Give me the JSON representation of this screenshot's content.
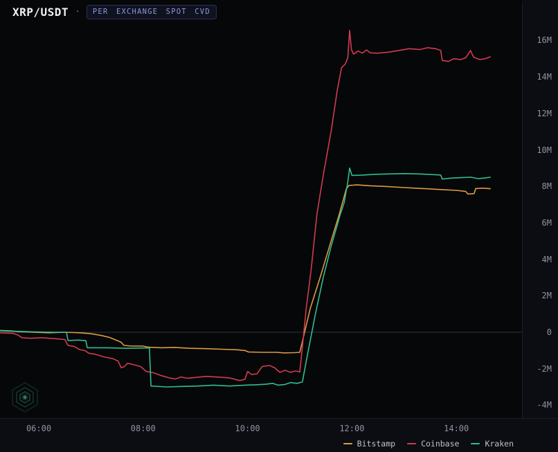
{
  "header": {
    "symbol": "XRP/USDT",
    "separator": "·",
    "badge": "PER EXCHANGE SPOT CVD"
  },
  "colors": {
    "background": "#0b0d13",
    "plot_background": "#060709",
    "zero_line": "#32343b",
    "axis_text": "#8f93a0",
    "badge_text": "#8c96dd",
    "bitstamp": "#dd9c3e",
    "coinbase": "#d23c4e",
    "kraken": "#31bd92"
  },
  "watermark": {
    "name": "hexagon-logo"
  },
  "chart_data": {
    "type": "line",
    "title": "XRP/USDT",
    "subtitle_badge": "PER EXCHANGE SPOT CVD",
    "units": "millions (CVD)",
    "grid": "zero-line only",
    "legend_position": "bottom-right",
    "x_axis": {
      "label_type": "time",
      "range_hours": [
        5.25,
        14.72
      ],
      "ticks": [
        {
          "t": 6,
          "label": "06:00"
        },
        {
          "t": 8,
          "label": "08:00"
        },
        {
          "t": 10,
          "label": "10:00"
        },
        {
          "t": 12,
          "label": "12:00"
        },
        {
          "t": 14,
          "label": "14:00"
        }
      ]
    },
    "y_axis": {
      "range_millions": [
        -4.7,
        16.9
      ],
      "ticks": [
        {
          "v": 16,
          "label": "16M"
        },
        {
          "v": 14,
          "label": "14M"
        },
        {
          "v": 12,
          "label": "12M"
        },
        {
          "v": 10,
          "label": "10M"
        },
        {
          "v": 8,
          "label": "8M"
        },
        {
          "v": 6,
          "label": "6M"
        },
        {
          "v": 4,
          "label": "4M"
        },
        {
          "v": 2,
          "label": "2M"
        },
        {
          "v": 0,
          "label": "0"
        },
        {
          "v": -2,
          "label": "-2M"
        },
        {
          "v": -4,
          "label": "-4M"
        }
      ]
    },
    "series": [
      {
        "name": "Bitstamp",
        "color": "#dd9c3e",
        "points": [
          [
            5.26,
            0.1
          ],
          [
            5.45,
            0.08
          ],
          [
            5.62,
            0.03
          ],
          [
            5.9,
            0.0
          ],
          [
            6.2,
            -0.03
          ],
          [
            6.5,
            0.0
          ],
          [
            6.8,
            -0.03
          ],
          [
            7.0,
            -0.08
          ],
          [
            7.2,
            -0.18
          ],
          [
            7.35,
            -0.28
          ],
          [
            7.5,
            -0.45
          ],
          [
            7.58,
            -0.55
          ],
          [
            7.63,
            -0.72
          ],
          [
            7.75,
            -0.75
          ],
          [
            8.0,
            -0.76
          ],
          [
            8.1,
            -0.82
          ],
          [
            8.35,
            -0.85
          ],
          [
            8.6,
            -0.83
          ],
          [
            8.9,
            -0.88
          ],
          [
            9.2,
            -0.9
          ],
          [
            9.5,
            -0.93
          ],
          [
            9.8,
            -0.96
          ],
          [
            9.95,
            -1.0
          ],
          [
            10.02,
            -1.08
          ],
          [
            10.3,
            -1.1
          ],
          [
            10.55,
            -1.1
          ],
          [
            10.7,
            -1.13
          ],
          [
            10.9,
            -1.12
          ],
          [
            11.0,
            -1.1
          ],
          [
            11.05,
            -0.5
          ],
          [
            11.2,
            1.3
          ],
          [
            11.4,
            3.1
          ],
          [
            11.6,
            5.0
          ],
          [
            11.76,
            6.5
          ],
          [
            11.89,
            7.85
          ],
          [
            11.94,
            8.05
          ],
          [
            12.1,
            8.08
          ],
          [
            12.35,
            8.03
          ],
          [
            12.6,
            8.0
          ],
          [
            12.9,
            7.95
          ],
          [
            13.2,
            7.9
          ],
          [
            13.5,
            7.86
          ],
          [
            13.72,
            7.82
          ],
          [
            14.0,
            7.78
          ],
          [
            14.18,
            7.72
          ],
          [
            14.22,
            7.58
          ],
          [
            14.34,
            7.6
          ],
          [
            14.37,
            7.88
          ],
          [
            14.5,
            7.9
          ],
          [
            14.65,
            7.87
          ]
        ]
      },
      {
        "name": "Coinbase",
        "color": "#d23c4e",
        "points": [
          [
            5.26,
            -0.03
          ],
          [
            5.5,
            -0.06
          ],
          [
            5.6,
            -0.15
          ],
          [
            5.68,
            -0.3
          ],
          [
            5.85,
            -0.33
          ],
          [
            6.05,
            -0.3
          ],
          [
            6.3,
            -0.35
          ],
          [
            6.5,
            -0.4
          ],
          [
            6.56,
            -0.72
          ],
          [
            6.68,
            -0.78
          ],
          [
            6.78,
            -0.95
          ],
          [
            6.88,
            -1.0
          ],
          [
            6.96,
            -1.15
          ],
          [
            7.1,
            -1.22
          ],
          [
            7.25,
            -1.35
          ],
          [
            7.42,
            -1.45
          ],
          [
            7.52,
            -1.58
          ],
          [
            7.58,
            -1.95
          ],
          [
            7.64,
            -1.88
          ],
          [
            7.7,
            -1.7
          ],
          [
            7.82,
            -1.78
          ],
          [
            7.95,
            -1.88
          ],
          [
            8.06,
            -2.15
          ],
          [
            8.2,
            -2.22
          ],
          [
            8.35,
            -2.38
          ],
          [
            8.5,
            -2.5
          ],
          [
            8.62,
            -2.56
          ],
          [
            8.72,
            -2.45
          ],
          [
            8.85,
            -2.52
          ],
          [
            9.0,
            -2.48
          ],
          [
            9.2,
            -2.42
          ],
          [
            9.45,
            -2.46
          ],
          [
            9.65,
            -2.5
          ],
          [
            9.85,
            -2.65
          ],
          [
            9.95,
            -2.58
          ],
          [
            10.0,
            -2.15
          ],
          [
            10.08,
            -2.32
          ],
          [
            10.18,
            -2.28
          ],
          [
            10.28,
            -1.88
          ],
          [
            10.42,
            -1.82
          ],
          [
            10.52,
            -1.95
          ],
          [
            10.62,
            -2.2
          ],
          [
            10.72,
            -2.08
          ],
          [
            10.82,
            -2.2
          ],
          [
            10.92,
            -2.12
          ],
          [
            11.0,
            -2.18
          ],
          [
            11.05,
            -0.8
          ],
          [
            11.12,
            1.2
          ],
          [
            11.22,
            3.5
          ],
          [
            11.33,
            6.5
          ],
          [
            11.45,
            8.6
          ],
          [
            11.6,
            11.0
          ],
          [
            11.72,
            13.3
          ],
          [
            11.8,
            14.5
          ],
          [
            11.87,
            14.7
          ],
          [
            11.92,
            15.05
          ],
          [
            11.955,
            16.55
          ],
          [
            11.99,
            15.5
          ],
          [
            12.03,
            15.25
          ],
          [
            12.12,
            15.42
          ],
          [
            12.2,
            15.3
          ],
          [
            12.28,
            15.48
          ],
          [
            12.35,
            15.32
          ],
          [
            12.5,
            15.3
          ],
          [
            12.7,
            15.36
          ],
          [
            12.9,
            15.45
          ],
          [
            13.1,
            15.55
          ],
          [
            13.3,
            15.5
          ],
          [
            13.45,
            15.6
          ],
          [
            13.6,
            15.55
          ],
          [
            13.7,
            15.45
          ],
          [
            13.73,
            14.9
          ],
          [
            13.85,
            14.85
          ],
          [
            13.95,
            15.0
          ],
          [
            14.08,
            14.95
          ],
          [
            14.18,
            15.05
          ],
          [
            14.27,
            15.45
          ],
          [
            14.33,
            15.08
          ],
          [
            14.45,
            14.95
          ],
          [
            14.55,
            15.0
          ],
          [
            14.65,
            15.1
          ]
        ]
      },
      {
        "name": "Kraken",
        "color": "#31bd92",
        "points": [
          [
            5.26,
            0.08
          ],
          [
            5.6,
            0.05
          ],
          [
            5.95,
            0.02
          ],
          [
            6.3,
            0.0
          ],
          [
            6.53,
            0.0
          ],
          [
            6.56,
            -0.45
          ],
          [
            6.75,
            -0.43
          ],
          [
            6.9,
            -0.46
          ],
          [
            6.93,
            -0.85
          ],
          [
            7.3,
            -0.85
          ],
          [
            7.7,
            -0.88
          ],
          [
            8.05,
            -0.86
          ],
          [
            8.12,
            -0.86
          ],
          [
            8.15,
            -2.95
          ],
          [
            8.45,
            -3.0
          ],
          [
            8.75,
            -2.97
          ],
          [
            9.05,
            -2.95
          ],
          [
            9.35,
            -2.9
          ],
          [
            9.65,
            -2.95
          ],
          [
            9.95,
            -2.9
          ],
          [
            10.15,
            -2.88
          ],
          [
            10.35,
            -2.85
          ],
          [
            10.48,
            -2.8
          ],
          [
            10.58,
            -2.9
          ],
          [
            10.72,
            -2.86
          ],
          [
            10.82,
            -2.76
          ],
          [
            10.95,
            -2.8
          ],
          [
            11.05,
            -2.72
          ],
          [
            11.15,
            -1.2
          ],
          [
            11.3,
            1.0
          ],
          [
            11.45,
            3.0
          ],
          [
            11.6,
            4.7
          ],
          [
            11.78,
            6.5
          ],
          [
            11.85,
            7.1
          ],
          [
            11.92,
            8.25
          ],
          [
            11.955,
            9.0
          ],
          [
            12.0,
            8.6
          ],
          [
            12.2,
            8.62
          ],
          [
            12.45,
            8.66
          ],
          [
            12.7,
            8.68
          ],
          [
            13.0,
            8.7
          ],
          [
            13.3,
            8.68
          ],
          [
            13.5,
            8.65
          ],
          [
            13.7,
            8.62
          ],
          [
            13.73,
            8.4
          ],
          [
            13.9,
            8.45
          ],
          [
            14.1,
            8.48
          ],
          [
            14.28,
            8.5
          ],
          [
            14.42,
            8.42
          ],
          [
            14.55,
            8.46
          ],
          [
            14.65,
            8.5
          ]
        ]
      }
    ]
  }
}
